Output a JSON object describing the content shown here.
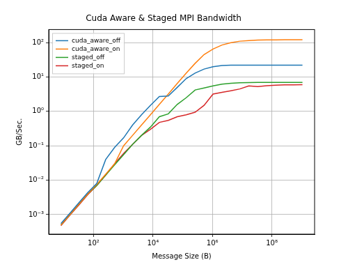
{
  "chart_data": {
    "type": "line",
    "title": "Cuda Aware & Staged MPI Bandwidth",
    "x_label": "Message Size (B)",
    "y_label": "GB/Sec.",
    "log": true,
    "grid": true,
    "legend": "upper left",
    "xlim": [
      3.1,
      2750000000
    ],
    "ylim": [
      0.00027,
      240
    ],
    "xticks": [
      {
        "value": 100,
        "label": "10²"
      },
      {
        "value": 10000,
        "label": "10⁴"
      },
      {
        "value": 1000000,
        "label": "10⁶"
      },
      {
        "value": 100000000,
        "label": "10⁸"
      }
    ],
    "yticks": [
      {
        "value": 0.001,
        "label": "10⁻³"
      },
      {
        "value": 0.01,
        "label": "10⁻²"
      },
      {
        "value": 0.1,
        "label": "10⁻¹"
      },
      {
        "value": 1,
        "label": "10⁰"
      },
      {
        "value": 10,
        "label": "10¹"
      },
      {
        "value": 100,
        "label": "10²"
      }
    ],
    "x": [
      8,
      16,
      32,
      64,
      128,
      256,
      512,
      1024,
      2048,
      4096,
      8192,
      16384,
      32768,
      65536,
      131072,
      262144,
      524288,
      1048576,
      2097152,
      4194304,
      8388608,
      16777216,
      33554432,
      67108864,
      134217728,
      268435456,
      536870912,
      1073741824
    ],
    "series": [
      {
        "name": "cuda_aware_off",
        "color": "#1f77b4",
        "values": [
          0.00055,
          0.0011,
          0.0022,
          0.0044,
          0.008,
          0.04,
          0.09,
          0.17,
          0.4,
          0.8,
          1.5,
          2.7,
          2.8,
          5,
          9,
          13,
          17,
          20,
          21.5,
          22,
          22,
          22,
          22,
          22,
          22,
          22,
          22,
          22
        ]
      },
      {
        "name": "cuda_aware_on",
        "color": "#ff7f0e",
        "values": [
          0.0005,
          0.001,
          0.002,
          0.004,
          0.0075,
          0.015,
          0.03,
          0.1,
          0.2,
          0.4,
          0.8,
          1.6,
          3.2,
          6.5,
          13,
          25,
          45,
          65,
          85,
          100,
          110,
          115,
          118,
          120,
          120,
          121,
          121,
          121
        ]
      },
      {
        "name": "staged_off",
        "color": "#2ca02c",
        "values": [
          0.0005,
          0.001,
          0.002,
          0.004,
          0.007,
          0.014,
          0.028,
          0.055,
          0.11,
          0.2,
          0.35,
          0.7,
          0.85,
          1.6,
          2.5,
          4.2,
          4.8,
          5.5,
          6.2,
          6.6,
          6.8,
          6.9,
          7,
          7,
          7,
          7,
          7,
          7
        ]
      },
      {
        "name": "staged_on",
        "color": "#d62728",
        "values": [
          0.00048,
          0.00096,
          0.0019,
          0.0038,
          0.007,
          0.014,
          0.03,
          0.06,
          0.11,
          0.2,
          0.3,
          0.48,
          0.55,
          0.7,
          0.8,
          0.95,
          1.5,
          3.2,
          3.6,
          4,
          4.5,
          5.5,
          5.3,
          5.6,
          5.8,
          5.9,
          5.9,
          6
        ]
      }
    ]
  }
}
